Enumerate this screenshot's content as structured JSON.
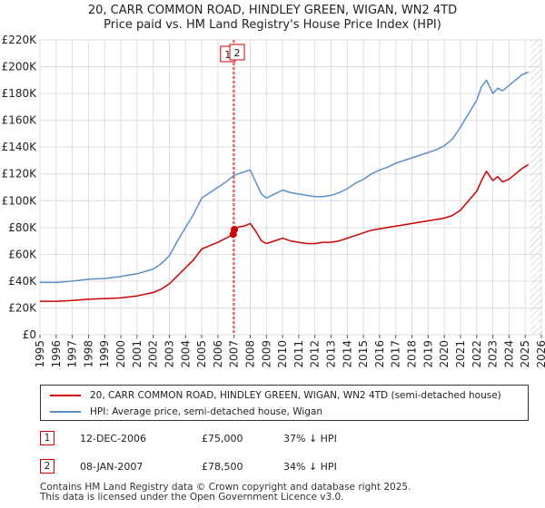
{
  "chart_data": {
    "type": "line",
    "title": "20, CARR COMMON ROAD, HINDLEY GREEN, WIGAN, WN2 4TD",
    "subtitle": "Price paid vs. HM Land Registry's House Price Index (HPI)",
    "xlabel": "",
    "ylabel": "",
    "xlim": [
      1995,
      2026
    ],
    "ylim": [
      0,
      220000
    ],
    "x_ticks": [
      "1995",
      "1996",
      "1997",
      "1998",
      "1999",
      "2000",
      "2001",
      "2002",
      "2003",
      "2004",
      "2005",
      "2006",
      "2007",
      "2008",
      "2009",
      "2010",
      "2011",
      "2012",
      "2013",
      "2014",
      "2015",
      "2016",
      "2017",
      "2018",
      "2019",
      "2020",
      "2021",
      "2022",
      "2023",
      "2024",
      "2025",
      "2026"
    ],
    "y_ticks": [
      {
        "value": 0,
        "label": "£0"
      },
      {
        "value": 20000,
        "label": "£20K"
      },
      {
        "value": 40000,
        "label": "£40K"
      },
      {
        "value": 60000,
        "label": "£60K"
      },
      {
        "value": 80000,
        "label": "£80K"
      },
      {
        "value": 100000,
        "label": "£100K"
      },
      {
        "value": 120000,
        "label": "£120K"
      },
      {
        "value": 140000,
        "label": "£140K"
      },
      {
        "value": 160000,
        "label": "£160K"
      },
      {
        "value": 180000,
        "label": "£180K"
      },
      {
        "value": 200000,
        "label": "£200K"
      },
      {
        "value": 220000,
        "label": "£220K"
      }
    ],
    "series": [
      {
        "name": "20, CARR COMMON ROAD, HINDLEY GREEN, WIGAN, WN2 4TD (semi-detached house)",
        "color": "#cc0000",
        "x": [
          1995,
          1996,
          1997,
          1998,
          1999,
          2000,
          2001,
          2002,
          2002.5,
          2003,
          2003.5,
          2004,
          2004.5,
          2005,
          2005.5,
          2006,
          2006.5,
          2006.95,
          2007.02,
          2007.3,
          2007.6,
          2008,
          2008.3,
          2008.7,
          2009,
          2009.5,
          2010,
          2010.5,
          2011,
          2011.5,
          2012,
          2012.5,
          2013,
          2013.5,
          2014,
          2014.5,
          2015,
          2015.5,
          2016,
          2016.5,
          2017,
          2017.5,
          2018,
          2018.5,
          2019,
          2019.5,
          2020,
          2020.5,
          2021,
          2021.5,
          2022,
          2022.3,
          2022.6,
          2023,
          2023.3,
          2023.6,
          2024,
          2024.4,
          2024.8,
          2025.2
        ],
        "y": [
          25000,
          25000,
          25500,
          26500,
          27000,
          27500,
          29000,
          31500,
          34000,
          38000,
          44000,
          50000,
          56000,
          64000,
          66500,
          69000,
          72000,
          75000,
          78500,
          80500,
          81000,
          83000,
          78000,
          70000,
          68000,
          70000,
          72000,
          70000,
          69000,
          68000,
          68000,
          69000,
          69000,
          70000,
          72000,
          74000,
          76000,
          78000,
          79000,
          80000,
          81000,
          82000,
          83000,
          84000,
          85000,
          86000,
          87000,
          89000,
          93000,
          100000,
          107000,
          115000,
          122000,
          115000,
          118000,
          114000,
          116000,
          120000,
          124000,
          127000
        ]
      },
      {
        "name": "HPI: Average price, semi-detached house, Wigan",
        "color": "#5b8fc9",
        "x": [
          1995,
          1996,
          1997,
          1998,
          1999,
          2000,
          2001,
          2002,
          2002.5,
          2003,
          2003.5,
          2004,
          2004.5,
          2005,
          2005.5,
          2006,
          2006.5,
          2007,
          2007.5,
          2008,
          2008.3,
          2008.7,
          2009,
          2009.5,
          2010,
          2010.5,
          2011,
          2011.5,
          2012,
          2012.5,
          2013,
          2013.5,
          2014,
          2014.5,
          2015,
          2015.5,
          2016,
          2016.5,
          2017,
          2017.5,
          2018,
          2018.5,
          2019,
          2019.5,
          2020,
          2020.5,
          2021,
          2021.5,
          2022,
          2022.3,
          2022.6,
          2023,
          2023.3,
          2023.6,
          2024,
          2024.4,
          2024.8,
          2025.2
        ],
        "y": [
          39000,
          39000,
          40000,
          41500,
          42000,
          43500,
          45500,
          49000,
          53000,
          59000,
          70000,
          80000,
          90000,
          102000,
          106000,
          110000,
          114000,
          119000,
          121000,
          123000,
          115000,
          105000,
          102000,
          105000,
          108000,
          106000,
          105000,
          104000,
          103000,
          103000,
          104000,
          106000,
          109000,
          113000,
          116000,
          120000,
          123000,
          125000,
          128000,
          130000,
          132000,
          134000,
          136000,
          138000,
          141000,
          146000,
          155000,
          165000,
          175000,
          185000,
          190000,
          180000,
          184000,
          182000,
          186000,
          190000,
          194000,
          196000
        ]
      }
    ],
    "markers": [
      {
        "label": "1",
        "x": 2006.95,
        "y": 75000
      },
      {
        "label": "2",
        "x": 2007.02,
        "y": 78500
      }
    ],
    "forecast_start": 2025.3,
    "legend_position": "bottom"
  },
  "transactions": [
    {
      "num": "1",
      "date": "12-DEC-2006",
      "price": "£75,000",
      "hpi": "37% ↓ HPI"
    },
    {
      "num": "2",
      "date": "08-JAN-2007",
      "price": "£78,500",
      "hpi": "34% ↓ HPI"
    }
  ],
  "footer": {
    "line1": "Contains HM Land Registry data © Crown copyright and database right 2025.",
    "line2": "This data is licensed under the Open Government Licence v3.0."
  }
}
